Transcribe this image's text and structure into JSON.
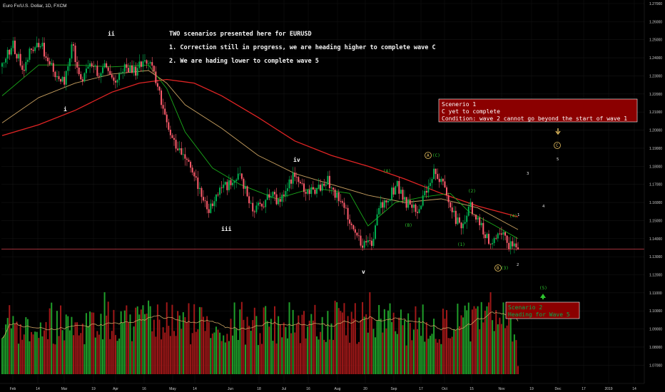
{
  "header": {
    "symbol": "Euro Fx/U.S. Dollar, 1D, FXCM"
  },
  "annotations": {
    "title_lines": [
      "TWO scenarios presented here for EURUSD",
      "1. Correction still in progress, we are heading higher to complete wave C",
      "2. We are hading lower to complete wave 5"
    ],
    "scenario1": {
      "lines": [
        "Scenerio 1",
        "C yet to complete",
        "Condition: wave 2 cannot go beyond the start of wave 1"
      ],
      "bg_color": "#8b0000"
    },
    "scenario2": {
      "lines": [
        "Scenario 2",
        "Heading for Wave 5"
      ],
      "bg_color": "#8b0000",
      "text_color": "#00b050"
    },
    "wave_labels": {
      "white": [
        "ii",
        "i",
        "iii",
        "iv",
        "v"
      ],
      "green": [
        "(A)",
        "(B)",
        "(1)",
        "(2)",
        "(3)",
        "(4)",
        "(5)",
        "(C)"
      ],
      "circled": [
        "A",
        "B",
        "C"
      ],
      "projection": [
        "1",
        "2",
        "3",
        "4",
        "5"
      ]
    }
  },
  "chart_data": {
    "type": "candlestick",
    "title": "",
    "symbol": "Euro Fx/U.S. Dollar, 1D, FXCM",
    "ylim": [
      1.065,
      1.27
    ],
    "y_ticks": [
      "1.27000",
      "1.26000",
      "1.25000",
      "1.24000",
      "1.23000",
      "1.22000",
      "1.21000",
      "1.20000",
      "1.19000",
      "1.18000",
      "1.17000",
      "1.16000",
      "1.15000",
      "1.14000",
      "1.13000",
      "1.12000",
      "1.11000",
      "1.10000",
      "1.09000",
      "1.08000",
      "1.07000"
    ],
    "x_tick_labels": [
      "Feb",
      "14",
      "Mar",
      "19",
      "Apr",
      "16",
      "May",
      "14",
      "Jun",
      "18",
      "Jul",
      "16",
      "Aug",
      "20",
      "Sep",
      "17",
      "Oct",
      "15",
      "Nov",
      "19",
      "Dec",
      "17",
      "2019",
      "14"
    ],
    "last_price": "1.13413",
    "horizontal_line": 1.1341,
    "colors": {
      "up": "#00b050",
      "down": "#ff5c6c",
      "volume_up": "#1f9e2a",
      "volume_down": "#a01818"
    },
    "anchors": [
      [
        0,
        1.236
      ],
      [
        6,
        1.247
      ],
      [
        12,
        1.232
      ],
      [
        15,
        1.245
      ],
      [
        22,
        1.246
      ],
      [
        26,
        1.236
      ],
      [
        34,
        1.226
      ],
      [
        38,
        1.248
      ],
      [
        43,
        1.227
      ],
      [
        48,
        1.236
      ],
      [
        53,
        1.231
      ],
      [
        56,
        1.238
      ],
      [
        62,
        1.226
      ],
      [
        67,
        1.234
      ],
      [
        73,
        1.233
      ],
      [
        78,
        1.238
      ],
      [
        82,
        1.236
      ],
      [
        86,
        1.219
      ],
      [
        92,
        1.198
      ],
      [
        98,
        1.186
      ],
      [
        102,
        1.183
      ],
      [
        108,
        1.167
      ],
      [
        113,
        1.156
      ],
      [
        118,
        1.167
      ],
      [
        124,
        1.17
      ],
      [
        130,
        1.177
      ],
      [
        136,
        1.157
      ],
      [
        142,
        1.158
      ],
      [
        147,
        1.165
      ],
      [
        151,
        1.16
      ],
      [
        156,
        1.168
      ],
      [
        160,
        1.176
      ],
      [
        166,
        1.165
      ],
      [
        172,
        1.167
      ],
      [
        178,
        1.172
      ],
      [
        182,
        1.165
      ],
      [
        186,
        1.158
      ],
      [
        192,
        1.146
      ],
      [
        196,
        1.138
      ],
      [
        202,
        1.137
      ],
      [
        206,
        1.156
      ],
      [
        212,
        1.164
      ],
      [
        216,
        1.17
      ],
      [
        220,
        1.16
      ],
      [
        226,
        1.155
      ],
      [
        232,
        1.165
      ],
      [
        236,
        1.177
      ],
      [
        240,
        1.172
      ],
      [
        244,
        1.162
      ],
      [
        248,
        1.151
      ],
      [
        252,
        1.146
      ],
      [
        256,
        1.158
      ],
      [
        260,
        1.15
      ],
      [
        266,
        1.139
      ],
      [
        270,
        1.142
      ],
      [
        274,
        1.143
      ],
      [
        277,
        1.136
      ],
      [
        280,
        1.14
      ],
      [
        282,
        1.134
      ]
    ],
    "moving_averages": [
      {
        "color": "#e02424",
        "points": [
          [
            0,
            1.197
          ],
          [
            20,
            1.203
          ],
          [
            40,
            1.211
          ],
          [
            60,
            1.221
          ],
          [
            75,
            1.226
          ],
          [
            90,
            1.228
          ],
          [
            105,
            1.226
          ],
          [
            120,
            1.219
          ],
          [
            140,
            1.207
          ],
          [
            160,
            1.194
          ],
          [
            180,
            1.186
          ],
          [
            200,
            1.18
          ],
          [
            220,
            1.173
          ],
          [
            240,
            1.165
          ],
          [
            260,
            1.158
          ],
          [
            282,
            1.152
          ]
        ]
      },
      {
        "color": "#c8a060",
        "points": [
          [
            0,
            1.204
          ],
          [
            20,
            1.218
          ],
          [
            40,
            1.226
          ],
          [
            60,
            1.231
          ],
          [
            80,
            1.233
          ],
          [
            90,
            1.226
          ],
          [
            100,
            1.214
          ],
          [
            120,
            1.201
          ],
          [
            140,
            1.186
          ],
          [
            160,
            1.176
          ],
          [
            180,
            1.17
          ],
          [
            200,
            1.164
          ],
          [
            220,
            1.16
          ],
          [
            240,
            1.162
          ],
          [
            260,
            1.157
          ],
          [
            282,
            1.145
          ]
        ]
      },
      {
        "color": "#1aa81a",
        "points": [
          [
            0,
            1.219
          ],
          [
            20,
            1.236
          ],
          [
            40,
            1.236
          ],
          [
            60,
            1.235
          ],
          [
            80,
            1.236
          ],
          [
            90,
            1.223
          ],
          [
            100,
            1.199
          ],
          [
            115,
            1.179
          ],
          [
            130,
            1.17
          ],
          [
            150,
            1.162
          ],
          [
            170,
            1.168
          ],
          [
            190,
            1.165
          ],
          [
            200,
            1.147
          ],
          [
            215,
            1.16
          ],
          [
            230,
            1.163
          ],
          [
            245,
            1.165
          ],
          [
            255,
            1.155
          ],
          [
            268,
            1.148
          ],
          [
            282,
            1.14
          ]
        ]
      }
    ],
    "volume_ma_color": "#c8a060"
  }
}
